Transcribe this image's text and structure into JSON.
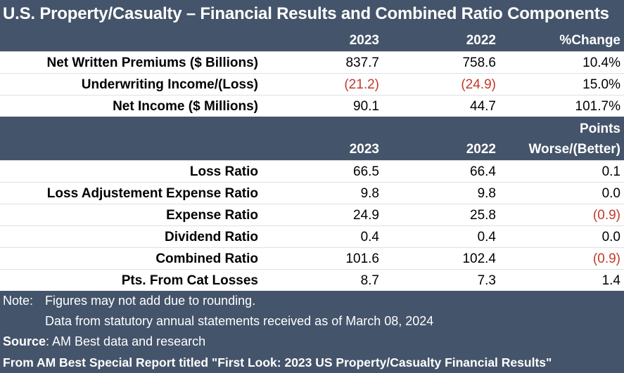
{
  "title": "U.S. Property/Casualty – Financial Results and Combined Ratio Components",
  "table1": {
    "headers": [
      "2023",
      "2022",
      "%Change"
    ],
    "rows": [
      {
        "label": "Net Written Premiums ($ Billions)",
        "v2023": "837.7",
        "v2022": "758.6",
        "change": "10.4%"
      },
      {
        "label": "Underwriting Income/(Loss)",
        "v2023": "(21.2)",
        "v2022": "(24.9)",
        "change": "15.0%"
      },
      {
        "label": "Net Income ($ Millions)",
        "v2023": "90.1",
        "v2022": "44.7",
        "change": "101.7%"
      }
    ]
  },
  "table2": {
    "header_top": "Points",
    "headers": [
      "2023",
      "2022",
      "Worse/(Better)"
    ],
    "rows": [
      {
        "label": "Loss Ratio",
        "v2023": "66.5",
        "v2022": "66.4",
        "change": "0.1"
      },
      {
        "label": "Loss Adjustement Expense Ratio",
        "v2023": "9.8",
        "v2022": "9.8",
        "change": "0.0"
      },
      {
        "label": "Expense Ratio",
        "v2023": "24.9",
        "v2022": "25.8",
        "change": "(0.9)"
      },
      {
        "label": "Dividend Ratio",
        "v2023": "0.4",
        "v2022": "0.4",
        "change": "0.0"
      },
      {
        "label": "Combined Ratio",
        "v2023": "101.6",
        "v2022": "102.4",
        "change": "(0.9)"
      },
      {
        "label": "Pts. From Cat Losses",
        "v2023": "8.7",
        "v2022": "7.3",
        "change": "1.4"
      }
    ]
  },
  "notes": {
    "note_label": "Note:",
    "note_line1": "Figures may not add due to rounding.",
    "note_line2": "Data from statutory annual statements received as of March 08, 2024",
    "source_label": "Source",
    "source_text": ": AM Best data and research",
    "report_text": "From AM Best Special Report titled \"First Look: 2023 US Property/Casualty Financial Results\""
  },
  "colors": {
    "header_bg": "#44546a",
    "negative": "#c0392b"
  }
}
